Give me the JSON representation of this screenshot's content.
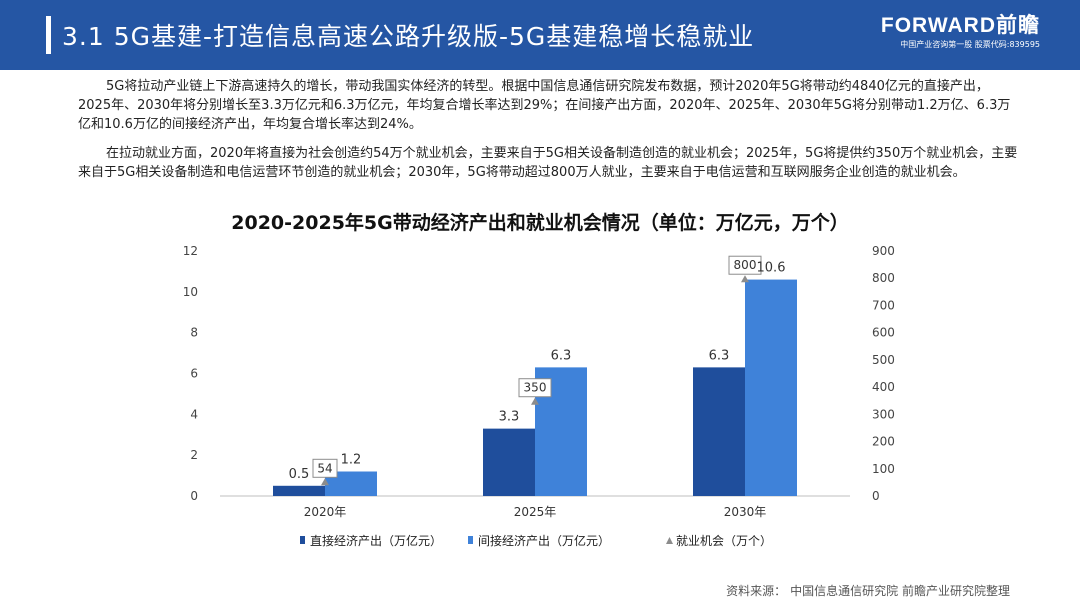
{
  "header": {
    "title": "3.1 5G基建-打造信息高速公路升级版-5G基建稳增长稳就业",
    "logo_brand": "FORWARD前瞻",
    "logo_sub": "中国产业咨询第一股 股票代码:839595"
  },
  "paragraphs": [
    "5G将拉动产业链上下游高速持久的增长，带动我国实体经济的转型。根据中国信息通信研究院发布数据，预计2020年5G将带动约4840亿元的直接产出，2025年、2030年将分别增长至3.3万亿元和6.3万亿元，年均复合增长率达到29%；在间接产出方面，2020年、2025年、2030年5G将分别带动1.2万亿、6.3万亿和10.6万亿的间接经济产出，年均复合增长率达到24%。",
    "在拉动就业方面，2020年将直接为社会创造约54万个就业机会，主要来自于5G相关设备制造创造的就业机会；2025年，5G将提供约350万个就业机会，主要来自于5G相关设备制造和电信运营环节创造的就业机会；2030年，5G将带动超过800万人就业，主要来自于电信运营和互联网服务企业创造的就业机会。"
  ],
  "chart_data": {
    "type": "bar",
    "title": "2020-2025年5G带动经济产出和就业机会情况（单位：万亿元，万个）",
    "categories": [
      "2020年",
      "2025年",
      "2030年"
    ],
    "series": [
      {
        "name": "直接经济产出（万亿元）",
        "values": [
          0.5,
          3.3,
          6.3
        ],
        "axis": "left",
        "color": "#1f4e9c",
        "labels": [
          "0.5",
          "3.3",
          "6.3"
        ]
      },
      {
        "name": "间接经济产出（万亿元）",
        "values": [
          1.2,
          6.3,
          10.6
        ],
        "axis": "left",
        "color": "#3f82d9",
        "labels": [
          "1.2",
          "6.3",
          "10.6"
        ]
      },
      {
        "name": "就业机会（万个）",
        "values": [
          54,
          350,
          800
        ],
        "axis": "right",
        "color": "#7f7f7f",
        "labels": [
          "54",
          "350",
          "800"
        ],
        "marker": "triangle-callout"
      }
    ],
    "ylim_left": [
      0,
      12
    ],
    "yticks_left": [
      "0",
      "2",
      "4",
      "6",
      "8",
      "10",
      "12"
    ],
    "ylim_right": [
      0,
      900
    ],
    "yticks_right": [
      "0",
      "100",
      "200",
      "300",
      "400",
      "500",
      "600",
      "700",
      "800",
      "900"
    ],
    "grid": false,
    "legend": "bottom"
  },
  "source": {
    "label": "资料来源：",
    "text": "中国信息通信研究院 前瞻产业研究院整理"
  },
  "colors": {
    "header_bg": "#2556a4",
    "bar_direct": "#1f4e9c",
    "bar_indirect": "#3f82d9"
  }
}
